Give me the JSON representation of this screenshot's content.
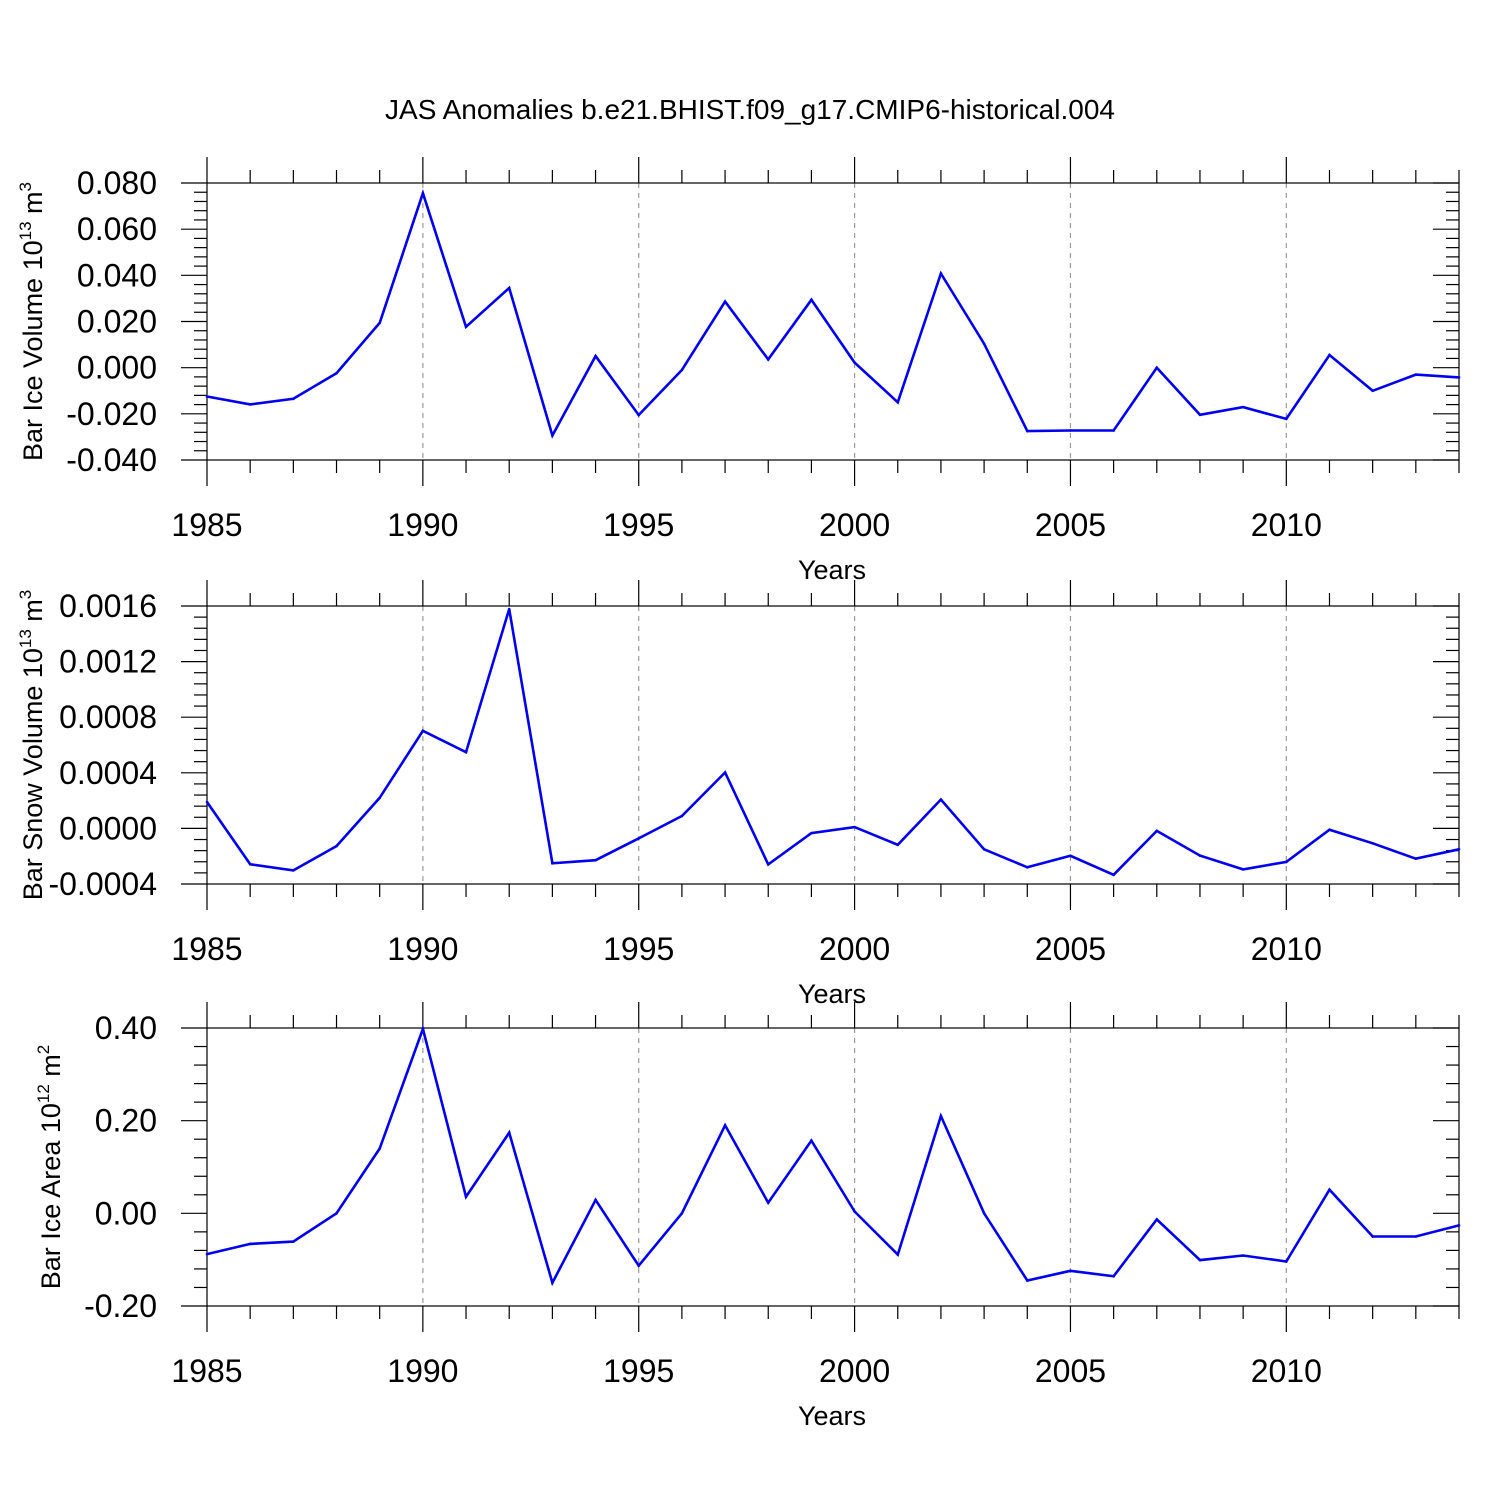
{
  "title": "JAS Anomalies b.e21.BHIST.f09_g17.CMIP6-historical.004",
  "line_color": "#0000ee",
  "chart_data": [
    {
      "type": "line",
      "ylabel": "Bar Ice Volume 10",
      "ylabel_exp": "13",
      "ylabel_unit": " m",
      "ylabel_unit_exp": "3",
      "xlabel": "Years",
      "xlim": [
        1985,
        2014
      ],
      "ylim": [
        -0.04,
        0.08
      ],
      "yticks": [
        -0.04,
        -0.02,
        0.0,
        0.02,
        0.04,
        0.06,
        0.08
      ],
      "ytick_labels": [
        "-0.040",
        "-0.020",
        "0.000",
        "0.020",
        "0.040",
        "0.060",
        "0.080"
      ],
      "xticks": [
        1985,
        1990,
        1995,
        2000,
        2005,
        2010
      ],
      "xtick_labels": [
        "1985",
        "1990",
        "1995",
        "2000",
        "2005",
        "2010"
      ],
      "x": [
        1985,
        1986,
        1987,
        1988,
        1989,
        1990,
        1991,
        1992,
        1993,
        1994,
        1995,
        1996,
        1997,
        1998,
        1999,
        2000,
        2001,
        2002,
        2003,
        2004,
        2005,
        2006,
        2007,
        2008,
        2009,
        2010,
        2011,
        2012,
        2013,
        2014
      ],
      "values": [
        -0.0125,
        -0.0159,
        -0.0135,
        -0.0024,
        0.0194,
        0.0756,
        0.0177,
        0.0345,
        -0.0294,
        0.005,
        -0.0205,
        -0.001,
        0.0286,
        0.0036,
        0.0294,
        0.0022,
        -0.015,
        0.0408,
        0.0104,
        -0.0275,
        -0.0272,
        -0.0272,
        0.0,
        -0.0204,
        -0.0171,
        -0.0222,
        0.0055,
        -0.01,
        -0.003,
        -0.0042
      ]
    },
    {
      "type": "line",
      "ylabel": "Bar Snow Volume 10",
      "ylabel_exp": "13",
      "ylabel_unit": " m",
      "ylabel_unit_exp": "3",
      "xlabel": "Years",
      "xlim": [
        1985,
        2014
      ],
      "ylim": [
        -0.0004,
        0.0016
      ],
      "yticks": [
        -0.0004,
        0.0,
        0.0004,
        0.0008,
        0.0012,
        0.0016
      ],
      "ytick_labels": [
        "-0.0004",
        "0.0000",
        "0.0004",
        "0.0008",
        "0.0012",
        "0.0016"
      ],
      "xticks": [
        1985,
        1990,
        1995,
        2000,
        2005,
        2010
      ],
      "xtick_labels": [
        "1985",
        "1990",
        "1995",
        "2000",
        "2005",
        "2010"
      ],
      "x": [
        1985,
        1986,
        1987,
        1988,
        1989,
        1990,
        1991,
        1992,
        1993,
        1994,
        1995,
        1996,
        1997,
        1998,
        1999,
        2000,
        2001,
        2002,
        2003,
        2004,
        2005,
        2006,
        2007,
        2008,
        2009,
        2010,
        2011,
        2012,
        2013,
        2014
      ],
      "values": [
        0.00019,
        -0.000258,
        -0.000302,
        -0.000127,
        0.00022,
        0.000702,
        0.000548,
        0.001578,
        -0.000251,
        -0.000229,
        -7.2e-05,
        8.9e-05,
        0.000402,
        -0.000259,
        -3.4e-05,
        9e-06,
        -0.000118,
        0.000208,
        -0.00015,
        -0.00028,
        -0.000197,
        -0.000334,
        -1.8e-05,
        -0.000196,
        -0.000295,
        -0.000241,
        -9e-06,
        -0.000107,
        -0.000218,
        -0.00015
      ]
    },
    {
      "type": "line",
      "ylabel": "Bar Ice Area 10",
      "ylabel_exp": "12",
      "ylabel_unit": " m",
      "ylabel_unit_exp": "2",
      "xlabel": "Years",
      "xlim": [
        1985,
        2014
      ],
      "ylim": [
        -0.2,
        0.4
      ],
      "yticks": [
        -0.2,
        0.0,
        0.2,
        0.4
      ],
      "ytick_labels": [
        "-0.20",
        "0.00",
        "0.20",
        "0.40"
      ],
      "xticks": [
        1985,
        1990,
        1995,
        2000,
        2005,
        2010
      ],
      "xtick_labels": [
        "1985",
        "1990",
        "1995",
        "2000",
        "2005",
        "2010"
      ],
      "x": [
        1985,
        1986,
        1987,
        1988,
        1989,
        1990,
        1991,
        1992,
        1993,
        1994,
        1995,
        1996,
        1997,
        1998,
        1999,
        2000,
        2001,
        2002,
        2003,
        2004,
        2005,
        2006,
        2007,
        2008,
        2009,
        2010,
        2011,
        2012,
        2013,
        2014
      ],
      "values": [
        -0.088,
        -0.066,
        -0.061,
        0.0,
        0.14,
        0.398,
        0.036,
        0.174,
        -0.15,
        0.029,
        -0.113,
        0.0,
        0.19,
        0.023,
        0.157,
        0.004,
        -0.089,
        0.21,
        0.0,
        -0.145,
        -0.124,
        -0.136,
        -0.013,
        -0.101,
        -0.091,
        -0.104,
        0.051,
        -0.05,
        -0.05,
        -0.026
      ]
    }
  ]
}
